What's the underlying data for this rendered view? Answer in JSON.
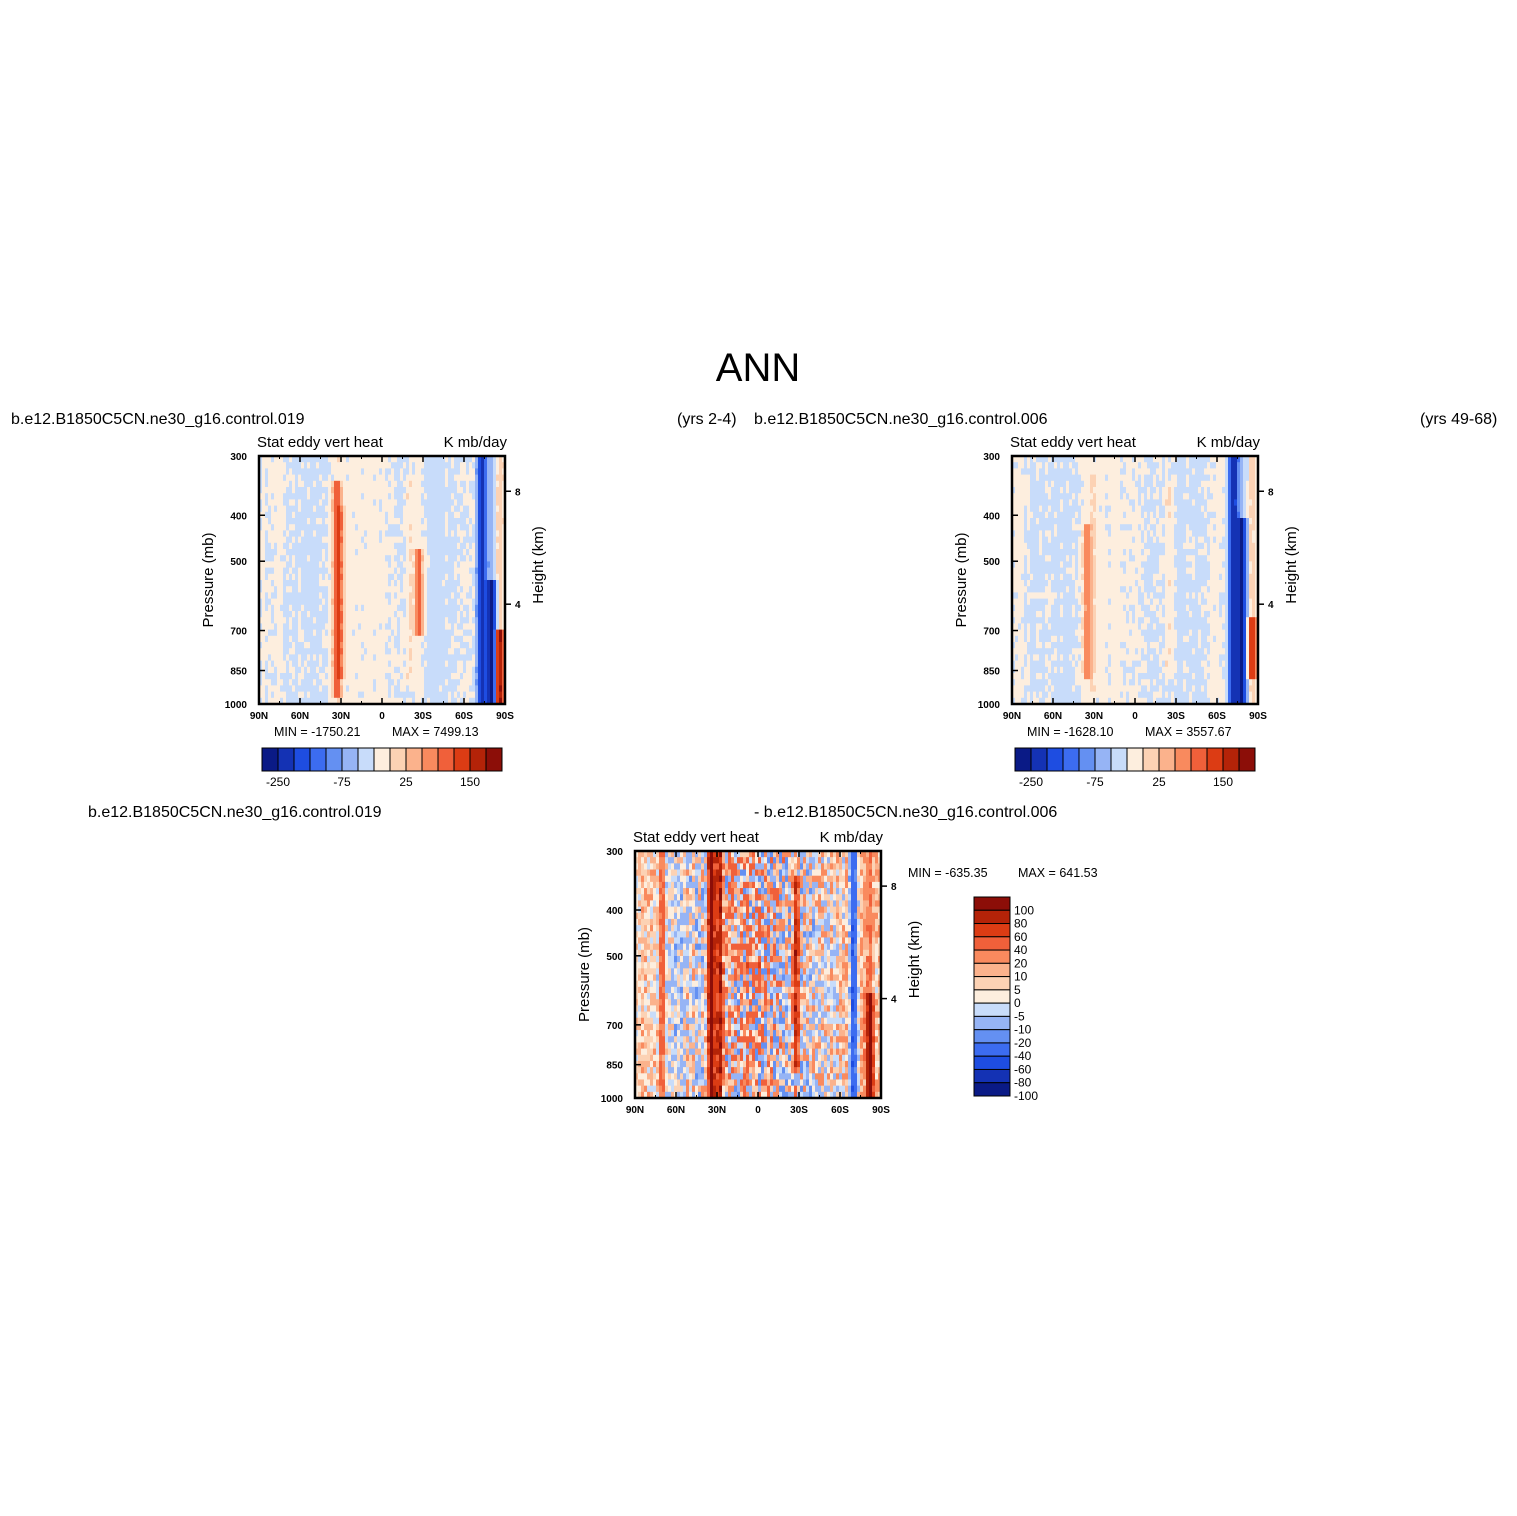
{
  "figure": {
    "title": "ANN",
    "top_left_case": "b.e12.B1850C5CN.ne30_g16.control.019",
    "top_left_years": "(yrs 2-4)",
    "top_right_case": "b.e12.B1850C5CN.ne30_g16.control.006",
    "top_right_years": "(yrs 49-68)",
    "diff_case_a": "b.e12.B1850C5CN.ne30_g16.control.019",
    "diff_case_b": "- b.e12.B1850C5CN.ne30_g16.control.006"
  },
  "colors": {
    "main_scale": [
      "#0a1a86",
      "#1432b4",
      "#1e4de1",
      "#3c6cf0",
      "#6490f2",
      "#96b4f5",
      "#c8dcfa",
      "#fdeede",
      "#fcd2b4",
      "#fbb28c",
      "#f98a5e",
      "#f0603a",
      "#dc3c14",
      "#b42308",
      "#8c0e08"
    ],
    "diff_scale": [
      "#0a1a86",
      "#1432b4",
      "#1e4de1",
      "#3c6cf0",
      "#6490f2",
      "#96b4f5",
      "#c8dcfa",
      "#fdeede",
      "#fcd2b4",
      "#fbb28c",
      "#f98a5e",
      "#f0603a",
      "#dc3c14",
      "#b42308",
      "#8c0e08"
    ]
  },
  "chart_data": [
    {
      "type": "heatmap",
      "id": "panel-case1",
      "title_left": "Stat eddy vert heat",
      "title_right": "K mb/day",
      "xlabel": "",
      "ylabel": "Pressure (mb)",
      "y2label": "Height (km)",
      "x_ticks": [
        "90N",
        "60N",
        "30N",
        "0",
        "30S",
        "60S",
        "90S"
      ],
      "x_tick_values": [
        90,
        60,
        30,
        0,
        -30,
        -60,
        -90
      ],
      "xlim": [
        90,
        -90
      ],
      "y_ticks": [
        300,
        400,
        500,
        700,
        850,
        1000
      ],
      "ylim": [
        300,
        1000
      ],
      "y2_ticks": [
        8,
        4
      ],
      "y2_tick_pressures": [
        356,
        616
      ],
      "min_text": "MIN = -1750.21",
      "max_text": "MAX = 7499.13",
      "colorbar_labels": [
        "-250",
        "-75",
        "25",
        "150"
      ],
      "features": [
        {
          "lat": 75,
          "p_top": 300,
          "p_bot": 1000,
          "value": 12
        },
        {
          "lat": 33,
          "p_top": 340,
          "p_bot": 960,
          "value": 140
        },
        {
          "lat": 30,
          "p_top": 380,
          "p_bot": 880,
          "value": 60
        },
        {
          "lat": -27,
          "p_top": 470,
          "p_bot": 720,
          "value": 120
        },
        {
          "lat": -20,
          "p_top": 330,
          "p_bot": 920,
          "value": 30
        },
        {
          "lat": -73,
          "p_top": 300,
          "p_bot": 1000,
          "value": -200
        },
        {
          "lat": -80,
          "p_top": 550,
          "p_bot": 1000,
          "value": -280
        },
        {
          "lat": -86,
          "p_top": 700,
          "p_bot": 1000,
          "value": 260
        }
      ]
    },
    {
      "type": "heatmap",
      "id": "panel-case2",
      "title_left": "Stat eddy vert heat",
      "title_right": "K mb/day",
      "xlabel": "",
      "ylabel": "Pressure (mb)",
      "y2label": "Height (km)",
      "x_ticks": [
        "90N",
        "60N",
        "30N",
        "0",
        "30S",
        "60S",
        "90S"
      ],
      "x_tick_values": [
        90,
        60,
        30,
        0,
        -30,
        -60,
        -90
      ],
      "xlim": [
        90,
        -90
      ],
      "y_ticks": [
        300,
        400,
        500,
        700,
        850,
        1000
      ],
      "ylim": [
        300,
        1000
      ],
      "y2_ticks": [
        8,
        4
      ],
      "y2_tick_pressures": [
        356,
        616
      ],
      "min_text": "MIN = -1628.10",
      "max_text": "MAX = 3557.67",
      "colorbar_labels": [
        "-250",
        "-75",
        "25",
        "150"
      ],
      "features": [
        {
          "lat": 35,
          "p_top": 420,
          "p_bot": 900,
          "value": 90
        },
        {
          "lat": 30,
          "p_top": 330,
          "p_bot": 960,
          "value": 25
        },
        {
          "lat": -25,
          "p_top": 340,
          "p_bot": 900,
          "value": 30
        },
        {
          "lat": -72,
          "p_top": 300,
          "p_bot": 1000,
          "value": -220
        },
        {
          "lat": -78,
          "p_top": 400,
          "p_bot": 1000,
          "value": -260
        },
        {
          "lat": -86,
          "p_top": 650,
          "p_bot": 900,
          "value": 200
        }
      ]
    },
    {
      "type": "heatmap",
      "id": "panel-diff",
      "title_left": "Stat eddy vert heat",
      "title_right": "K mb/day",
      "xlabel": "",
      "ylabel": "Pressure (mb)",
      "y2label": "Height (km)",
      "x_ticks": [
        "90N",
        "60N",
        "30N",
        "0",
        "30S",
        "60S",
        "90S"
      ],
      "x_tick_values": [
        90,
        60,
        30,
        0,
        -30,
        -60,
        -90
      ],
      "xlim": [
        90,
        -90
      ],
      "y_ticks": [
        300,
        400,
        500,
        700,
        850,
        1000
      ],
      "ylim": [
        300,
        1000
      ],
      "y2_ticks": [
        8,
        4
      ],
      "y2_tick_pressures": [
        356,
        616
      ],
      "min_text": "MIN = -635.35",
      "max_text": "MAX = 641.53",
      "colorbar_labels": [
        "100",
        "80",
        "60",
        "40",
        "20",
        "10",
        "5",
        "0",
        "-5",
        "-10",
        "-20",
        "-40",
        "-60",
        "-80",
        "-100"
      ],
      "features": [
        {
          "lat": 70,
          "p_top": 300,
          "p_bot": 1000,
          "value": 30
        },
        {
          "lat": 34,
          "p_top": 300,
          "p_bot": 1000,
          "value": 110
        },
        {
          "lat": 28,
          "p_top": 300,
          "p_bot": 1000,
          "value": 70
        },
        {
          "lat": -28,
          "p_top": 340,
          "p_bot": 900,
          "value": 70
        },
        {
          "lat": -70,
          "p_top": 300,
          "p_bot": 1000,
          "value": -70
        },
        {
          "lat": -82,
          "p_top": 600,
          "p_bot": 1000,
          "value": 110
        }
      ]
    }
  ]
}
